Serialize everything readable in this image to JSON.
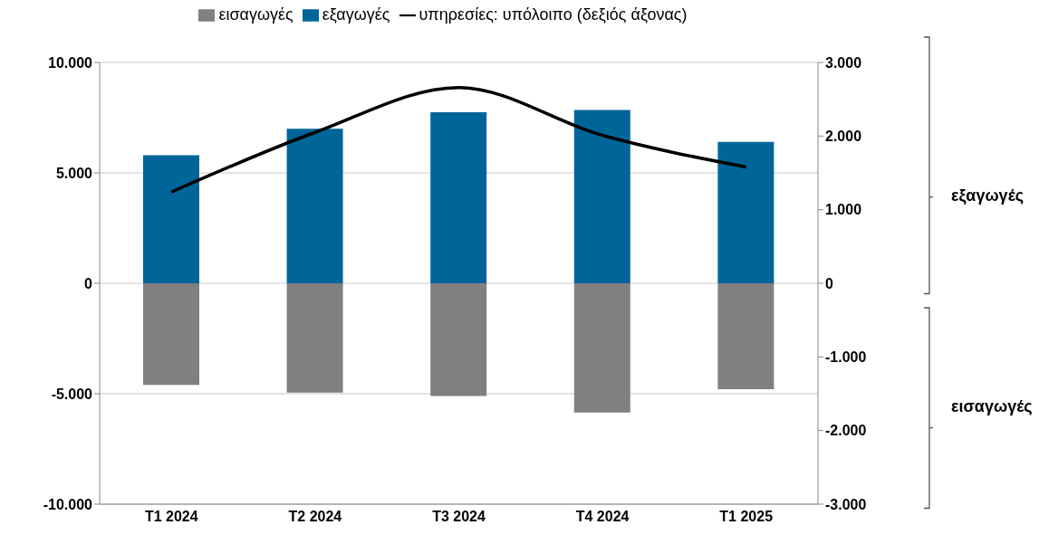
{
  "chart_data": {
    "type": "bar",
    "stacked": true,
    "categories": [
      "T1 2024",
      "T2 2024",
      "T3 2024",
      "T4 2024",
      "T1 2025"
    ],
    "series": [
      {
        "name": "εισαγωγές",
        "color": "#808080",
        "values": [
          -4600,
          -4950,
          -5100,
          -5850,
          -4800
        ]
      },
      {
        "name": "εξαγωγές",
        "color": "#006699",
        "values": [
          5800,
          7000,
          7750,
          7850,
          6400
        ]
      },
      {
        "name": "υπηρεσίες: υπόλοιπο (δεξιός άξονας)",
        "type": "line",
        "axis": "y2",
        "color": "#000000",
        "values": [
          1240,
          2050,
          2660,
          2010,
          1580
        ]
      }
    ],
    "ylim": [
      -10000,
      10000
    ],
    "yticks": [
      {
        "value": -10000,
        "label": "-10.000"
      },
      {
        "value": -5000,
        "label": "-5.000"
      },
      0,
      {
        "value": 5000,
        "label": "5.000"
      },
      {
        "value": 10000,
        "label": "10.000"
      }
    ],
    "y2lim": [
      -3000,
      3000
    ],
    "y2ticks": [
      {
        "value": -3000,
        "label": "-3.000"
      },
      {
        "value": -2000,
        "label": "-2.000"
      },
      {
        "value": -1000,
        "label": "-1.000"
      },
      0,
      {
        "value": 1000,
        "label": "1.000"
      },
      {
        "value": 2000,
        "label": "2.000"
      },
      {
        "value": 3000,
        "label": "3.000"
      }
    ],
    "grid": "y",
    "legend": "top",
    "marker": "none",
    "line_style": "solid",
    "annotations": [
      "εξαγωγές",
      "εισαγωγές"
    ]
  }
}
